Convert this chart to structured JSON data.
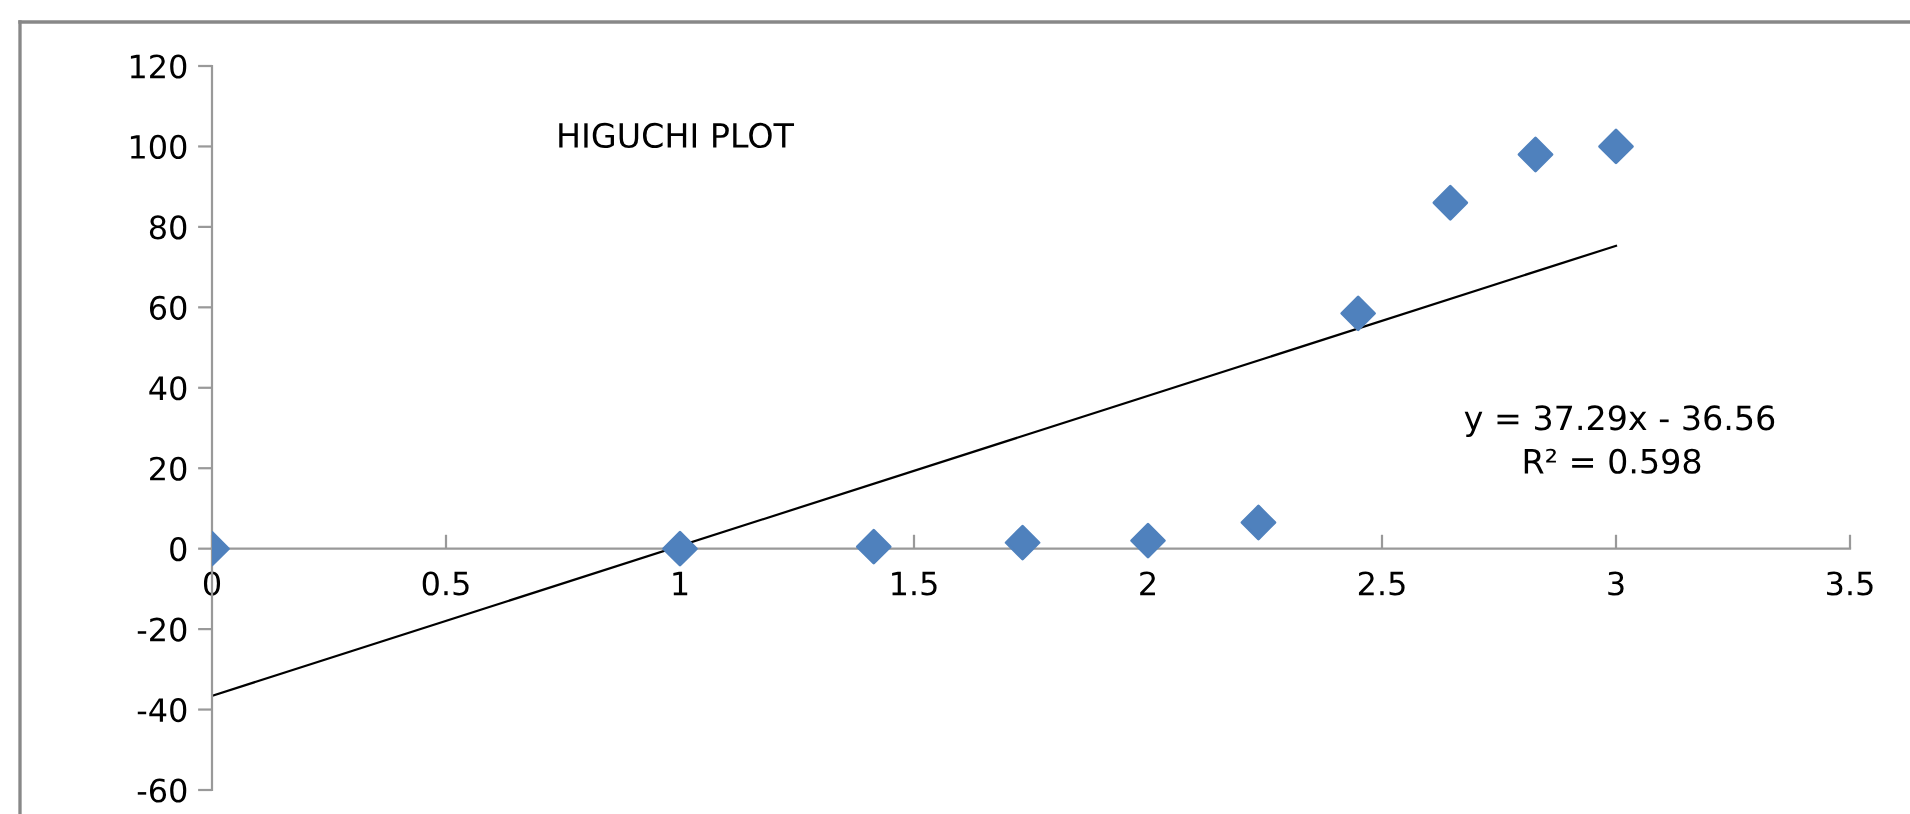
{
  "chart_data": {
    "type": "scatter",
    "title": "HIGUCHI PLOT",
    "series": [
      {
        "color": "#4f81bd",
        "marker": "diamond",
        "x": [
          0,
          1,
          1.414,
          1.732,
          2,
          2.236,
          2.449,
          2.646,
          2.828,
          3
        ],
        "values": [
          0,
          0,
          0.5,
          1.5,
          2,
          6.5,
          58.5,
          86,
          98,
          100
        ]
      },
      {
        "type": "line",
        "color": "#000000",
        "marker": "none",
        "line_style": "solid",
        "x": [
          0,
          3
        ],
        "values": [
          -36.6,
          75.3
        ]
      }
    ],
    "annotations": [
      "y = 37.29x - 36.56",
      "R² = 0.598"
    ],
    "xlim": [
      0,
      3.5
    ],
    "xticks": [
      0,
      0.5,
      1,
      1.5,
      2,
      2.5,
      3,
      3.5
    ],
    "ylim": [
      -60,
      120
    ],
    "yticks": [
      -60,
      -40,
      -20,
      0,
      20,
      40,
      60,
      80,
      100,
      120
    ],
    "grid": false,
    "legend": false
  }
}
